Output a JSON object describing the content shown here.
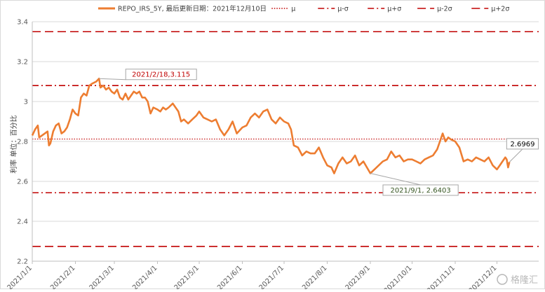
{
  "chart_data": {
    "type": "line",
    "legend": [
      {
        "name": "REPO_IRS_5Y, 最后更新日期：2021年12月10日",
        "style": "solid-thick",
        "color": "#ed7d31"
      },
      {
        "name": "μ",
        "style": "dotted",
        "color": "#c00000"
      },
      {
        "name": "μ-σ",
        "style": "dashdot",
        "color": "#c00000"
      },
      {
        "name": "μ+σ",
        "style": "dashdot",
        "color": "#c00000"
      },
      {
        "name": "μ-2σ",
        "style": "dashed",
        "color": "#c00000"
      },
      {
        "name": "μ+2σ",
        "style": "dashed",
        "color": "#c00000"
      }
    ],
    "legend_position": "top",
    "ylabel": "利率 单位：百分比",
    "ylim": [
      2.2,
      3.4
    ],
    "yticks": [
      "2.2",
      "2.4",
      "2.6",
      "2.8",
      "3",
      "3.2",
      "3.4"
    ],
    "xlim": [
      "2021-01-01",
      "2021-12-31"
    ],
    "xticks": [
      "2021/1/1",
      "2021/2/1",
      "2021/3/1",
      "2021/4/1",
      "2021/5/1",
      "2021/6/1",
      "2021/7/1",
      "2021/8/1",
      "2021/9/1",
      "2021/10/1",
      "2021/11/1",
      "2021/12/1"
    ],
    "grid": "horizontal",
    "reference_lines": [
      {
        "name": "μ",
        "value": 2.812,
        "style": "dotted"
      },
      {
        "name": "μ-σ",
        "value": 2.543,
        "style": "dashdot"
      },
      {
        "name": "μ+σ",
        "value": 3.08,
        "style": "dashdot"
      },
      {
        "name": "μ-2σ",
        "value": 2.274,
        "style": "dashed"
      },
      {
        "name": "μ+2σ",
        "value": 3.35,
        "style": "dashed"
      }
    ],
    "annotations": [
      {
        "text": "2021/2/18,3.115",
        "date": "2021-02-18",
        "value": 3.115,
        "color": "#c00000"
      },
      {
        "text": "2021/9/1, 2.6403",
        "date": "2021-09-01",
        "value": 2.6403,
        "color": "#375623"
      },
      {
        "text": "2.6969",
        "date": "2021-12-10",
        "value": 2.6969,
        "color": "#000000"
      }
    ],
    "series": [
      {
        "name": "REPO_IRS_5Y",
        "color": "#ed7d31",
        "points": [
          [
            "2021-01-01",
            2.83
          ],
          [
            "2021-01-03",
            2.86
          ],
          [
            "2021-01-05",
            2.88
          ],
          [
            "2021-01-06",
            2.82
          ],
          [
            "2021-01-08",
            2.83
          ],
          [
            "2021-01-10",
            2.84
          ],
          [
            "2021-01-12",
            2.85
          ],
          [
            "2021-01-13",
            2.78
          ],
          [
            "2021-01-14",
            2.79
          ],
          [
            "2021-01-16",
            2.85
          ],
          [
            "2021-01-18",
            2.88
          ],
          [
            "2021-01-20",
            2.89
          ],
          [
            "2021-01-22",
            2.84
          ],
          [
            "2021-01-24",
            2.85
          ],
          [
            "2021-01-26",
            2.87
          ],
          [
            "2021-01-28",
            2.91
          ],
          [
            "2021-01-30",
            2.96
          ],
          [
            "2021-02-01",
            2.94
          ],
          [
            "2021-02-03",
            2.93
          ],
          [
            "2021-02-05",
            3.02
          ],
          [
            "2021-02-07",
            3.04
          ],
          [
            "2021-02-09",
            3.03
          ],
          [
            "2021-02-11",
            3.08
          ],
          [
            "2021-02-13",
            3.09
          ],
          [
            "2021-02-16",
            3.1
          ],
          [
            "2021-02-18",
            3.115
          ],
          [
            "2021-02-19",
            3.07
          ],
          [
            "2021-02-21",
            3.08
          ],
          [
            "2021-02-23",
            3.06
          ],
          [
            "2021-02-25",
            3.07
          ],
          [
            "2021-02-27",
            3.05
          ],
          [
            "2021-03-01",
            3.04
          ],
          [
            "2021-03-03",
            3.06
          ],
          [
            "2021-03-05",
            3.02
          ],
          [
            "2021-03-07",
            3.01
          ],
          [
            "2021-03-09",
            3.04
          ],
          [
            "2021-03-11",
            3.01
          ],
          [
            "2021-03-13",
            3.03
          ],
          [
            "2021-03-15",
            3.05
          ],
          [
            "2021-03-17",
            3.04
          ],
          [
            "2021-03-19",
            3.05
          ],
          [
            "2021-03-21",
            3.02
          ],
          [
            "2021-03-23",
            3.02
          ],
          [
            "2021-03-25",
            3.0
          ],
          [
            "2021-03-27",
            2.94
          ],
          [
            "2021-03-29",
            2.97
          ],
          [
            "2021-04-01",
            2.96
          ],
          [
            "2021-04-03",
            2.95
          ],
          [
            "2021-04-05",
            2.97
          ],
          [
            "2021-04-07",
            2.96
          ],
          [
            "2021-04-09",
            2.97
          ],
          [
            "2021-04-12",
            2.99
          ],
          [
            "2021-04-14",
            2.97
          ],
          [
            "2021-04-16",
            2.95
          ],
          [
            "2021-04-18",
            2.9
          ],
          [
            "2021-04-20",
            2.91
          ],
          [
            "2021-04-23",
            2.89
          ],
          [
            "2021-04-26",
            2.91
          ],
          [
            "2021-04-29",
            2.93
          ],
          [
            "2021-05-01",
            2.95
          ],
          [
            "2021-05-04",
            2.92
          ],
          [
            "2021-05-07",
            2.91
          ],
          [
            "2021-05-10",
            2.9
          ],
          [
            "2021-05-13",
            2.91
          ],
          [
            "2021-05-16",
            2.86
          ],
          [
            "2021-05-19",
            2.83
          ],
          [
            "2021-05-22",
            2.86
          ],
          [
            "2021-05-25",
            2.9
          ],
          [
            "2021-05-28",
            2.84
          ],
          [
            "2021-06-01",
            2.87
          ],
          [
            "2021-06-04",
            2.88
          ],
          [
            "2021-06-07",
            2.92
          ],
          [
            "2021-06-10",
            2.94
          ],
          [
            "2021-06-13",
            2.92
          ],
          [
            "2021-06-16",
            2.95
          ],
          [
            "2021-06-19",
            2.96
          ],
          [
            "2021-06-22",
            2.91
          ],
          [
            "2021-06-25",
            2.89
          ],
          [
            "2021-06-28",
            2.92
          ],
          [
            "2021-07-01",
            2.9
          ],
          [
            "2021-07-04",
            2.89
          ],
          [
            "2021-07-06",
            2.86
          ],
          [
            "2021-07-08",
            2.78
          ],
          [
            "2021-07-11",
            2.77
          ],
          [
            "2021-07-14",
            2.73
          ],
          [
            "2021-07-17",
            2.75
          ],
          [
            "2021-07-20",
            2.74
          ],
          [
            "2021-07-23",
            2.74
          ],
          [
            "2021-07-26",
            2.77
          ],
          [
            "2021-07-29",
            2.72
          ],
          [
            "2021-08-01",
            2.68
          ],
          [
            "2021-08-04",
            2.67
          ],
          [
            "2021-08-06",
            2.64
          ],
          [
            "2021-08-09",
            2.69
          ],
          [
            "2021-08-12",
            2.72
          ],
          [
            "2021-08-15",
            2.69
          ],
          [
            "2021-08-18",
            2.7
          ],
          [
            "2021-08-21",
            2.73
          ],
          [
            "2021-08-24",
            2.68
          ],
          [
            "2021-08-27",
            2.7
          ],
          [
            "2021-09-01",
            2.6403
          ],
          [
            "2021-09-04",
            2.66
          ],
          [
            "2021-09-07",
            2.68
          ],
          [
            "2021-09-10",
            2.7
          ],
          [
            "2021-09-13",
            2.71
          ],
          [
            "2021-09-16",
            2.75
          ],
          [
            "2021-09-19",
            2.72
          ],
          [
            "2021-09-22",
            2.73
          ],
          [
            "2021-09-25",
            2.7
          ],
          [
            "2021-09-28",
            2.71
          ],
          [
            "2021-10-01",
            2.71
          ],
          [
            "2021-10-04",
            2.7
          ],
          [
            "2021-10-07",
            2.69
          ],
          [
            "2021-10-10",
            2.71
          ],
          [
            "2021-10-13",
            2.72
          ],
          [
            "2021-10-16",
            2.73
          ],
          [
            "2021-10-19",
            2.76
          ],
          [
            "2021-10-21",
            2.8
          ],
          [
            "2021-10-23",
            2.84
          ],
          [
            "2021-10-25",
            2.8
          ],
          [
            "2021-10-27",
            2.82
          ],
          [
            "2021-10-29",
            2.81
          ],
          [
            "2021-11-01",
            2.8
          ],
          [
            "2021-11-04",
            2.77
          ],
          [
            "2021-11-07",
            2.7
          ],
          [
            "2021-11-10",
            2.71
          ],
          [
            "2021-11-13",
            2.7
          ],
          [
            "2021-11-16",
            2.72
          ],
          [
            "2021-11-19",
            2.71
          ],
          [
            "2021-11-22",
            2.7
          ],
          [
            "2021-11-25",
            2.72
          ],
          [
            "2021-11-28",
            2.68
          ],
          [
            "2021-12-01",
            2.66
          ],
          [
            "2021-12-03",
            2.68
          ],
          [
            "2021-12-05",
            2.7
          ],
          [
            "2021-12-07",
            2.72
          ],
          [
            "2021-12-08",
            2.71
          ],
          [
            "2021-12-09",
            2.67
          ],
          [
            "2021-12-10",
            2.6969
          ]
        ]
      }
    ]
  },
  "watermark": "格隆汇"
}
